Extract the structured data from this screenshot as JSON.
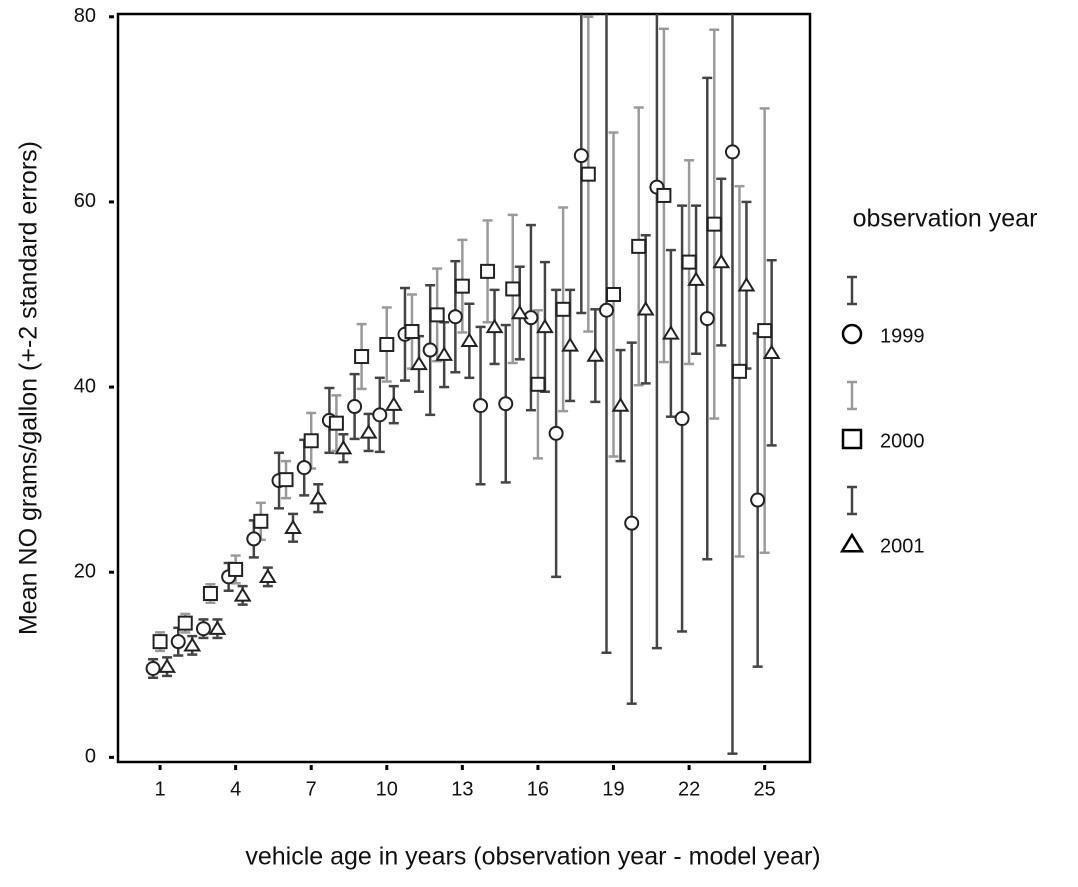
{
  "chart_data": {
    "type": "errorbar-scatter",
    "x_label": "vehicle age in years (observation year - model year)",
    "y_label": "Mean NO grams/gallon (+-2 standard errors)",
    "legend_title": "observation year",
    "x": [
      1,
      2,
      3,
      4,
      5,
      6,
      7,
      8,
      9,
      10,
      11,
      12,
      13,
      14,
      15,
      16,
      17,
      18,
      19,
      20,
      21,
      22,
      23,
      24,
      25
    ],
    "series": [
      {
        "name": "1999",
        "marker": "circle",
        "color": "#444444",
        "values": [
          9.6,
          12.5,
          13.9,
          19.5,
          23.6,
          29.9,
          31.3,
          36.4,
          37.9,
          37,
          45.7,
          44,
          47.6,
          38,
          38.2,
          47.5,
          35,
          65,
          48.3,
          25.3,
          61.6,
          36.6,
          47.4,
          65.4,
          27.8
        ],
        "errors": [
          1,
          1.5,
          1,
          1.5,
          2,
          3,
          3,
          3.5,
          3.5,
          4,
          5,
          7,
          6,
          8.5,
          8.5,
          10,
          15.5,
          17,
          37,
          19.5,
          49.8,
          23,
          26,
          65,
          18
        ]
      },
      {
        "name": "2000",
        "marker": "square",
        "color": "#9a9a9a",
        "values": [
          12.5,
          14.5,
          17.7,
          20.3,
          25.5,
          30,
          34.2,
          36.1,
          43.3,
          44.6,
          46,
          47.8,
          50.9,
          52.5,
          50.6,
          40.3,
          48.4,
          63,
          50,
          55.2,
          60.7,
          53.5,
          57.6,
          41.7,
          46.1
        ],
        "errors": [
          1,
          1,
          1,
          1.5,
          2,
          2,
          3,
          3,
          3.5,
          4,
          4,
          5,
          5,
          5.5,
          8,
          8,
          11,
          17,
          17.5,
          15,
          18,
          11,
          21,
          20,
          24
        ]
      },
      {
        "name": "2001",
        "marker": "triangle",
        "color": "#444444",
        "values": [
          9.8,
          12.1,
          13.9,
          17.5,
          19.5,
          24.8,
          28,
          33.4,
          35.1,
          38.1,
          42.5,
          43.5,
          45,
          46.5,
          48,
          46.5,
          44.5,
          43.4,
          38,
          48.4,
          45.8,
          51.6,
          53.5,
          51,
          43.7
        ],
        "errors": [
          1,
          1,
          1,
          1,
          1,
          1.5,
          1.5,
          1.5,
          2,
          2,
          3,
          3.5,
          4,
          4,
          5,
          7,
          6,
          5,
          6,
          8,
          9,
          8,
          9,
          9,
          10
        ]
      }
    ],
    "xlim": [
      -0.67,
      26.8
    ],
    "ylim": [
      -0.5,
      80.3
    ],
    "xticks": [
      1,
      4,
      7,
      10,
      13,
      16,
      19,
      22,
      25
    ],
    "yticks": [
      0,
      20,
      40,
      60,
      80
    ]
  }
}
